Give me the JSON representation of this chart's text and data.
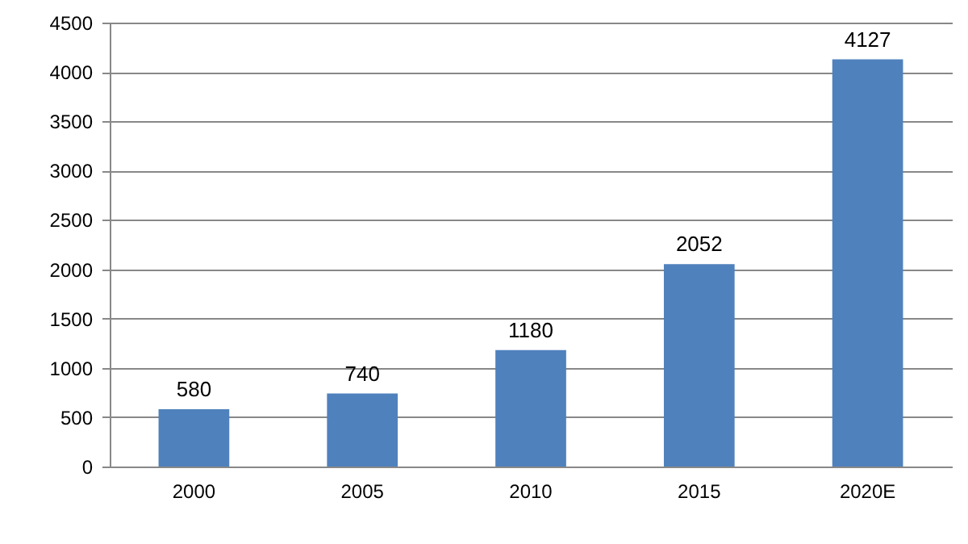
{
  "chart_data": {
    "type": "bar",
    "categories": [
      "2000",
      "2005",
      "2010",
      "2015",
      "2020E"
    ],
    "values": [
      580,
      740,
      1180,
      2052,
      4127
    ],
    "color": "#4f81bd",
    "ylim": [
      0,
      4500
    ],
    "yticks": [
      0,
      500,
      1000,
      1500,
      2000,
      2500,
      3000,
      3500,
      4000,
      4500
    ],
    "grid": "y",
    "data_labels": true
  }
}
